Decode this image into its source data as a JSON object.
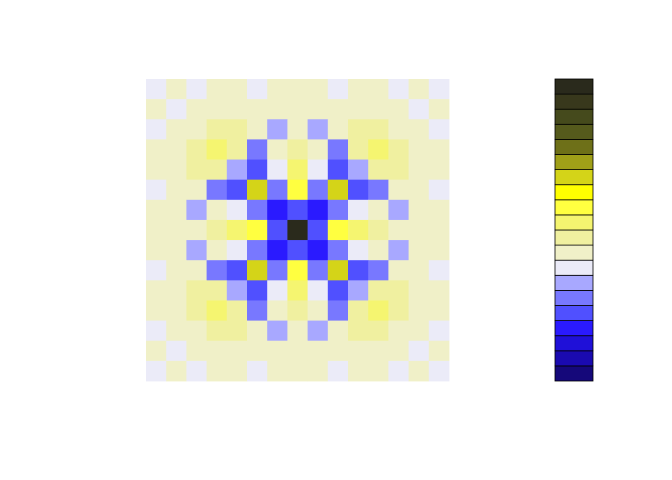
{
  "chart_data": {
    "type": "contour",
    "levels": [
      0,
      1,
      2,
      3,
      4,
      5,
      6,
      7,
      8,
      9,
      10,
      11,
      12,
      13,
      14,
      15,
      16,
      17,
      18,
      19
    ],
    "colors": [
      "#15087a",
      "#1a0ab0",
      "#1f10d8",
      "#2a1aff",
      "#5050ff",
      "#7878ff",
      "#a8a8ff",
      "#ebebf8",
      "#f0f0c8",
      "#f0f0a0",
      "#f5f570",
      "#ffff40",
      "#ffff00",
      "#d4d418",
      "#a0a018",
      "#6e7018",
      "#555a1c",
      "#454a1c",
      "#38381c",
      "#2a2a1c"
    ],
    "z": [
      [
        7,
        8,
        7,
        8,
        8,
        7,
        8,
        8,
        8,
        7,
        8,
        8,
        7,
        8,
        7
      ],
      [
        8,
        7,
        8,
        8,
        8,
        8,
        8,
        8,
        8,
        8,
        8,
        8,
        8,
        7,
        8
      ],
      [
        7,
        8,
        8,
        9,
        9,
        8,
        6,
        8,
        6,
        8,
        9,
        9,
        8,
        8,
        7
      ],
      [
        8,
        8,
        9,
        10,
        9,
        5,
        8,
        9,
        8,
        5,
        9,
        10,
        9,
        8,
        8
      ],
      [
        8,
        8,
        9,
        9,
        6,
        4,
        7,
        10,
        7,
        4,
        6,
        9,
        9,
        8,
        8
      ],
      [
        7,
        8,
        8,
        5,
        4,
        13,
        5,
        11,
        5,
        13,
        4,
        5,
        8,
        8,
        7
      ],
      [
        8,
        8,
        6,
        8,
        7,
        5,
        3,
        4,
        3,
        5,
        7,
        8,
        6,
        8,
        8
      ],
      [
        8,
        8,
        8,
        9,
        10,
        11,
        4,
        19,
        4,
        11,
        10,
        9,
        8,
        8,
        8
      ],
      [
        8,
        8,
        6,
        8,
        7,
        5,
        3,
        4,
        3,
        5,
        7,
        8,
        6,
        8,
        8
      ],
      [
        7,
        8,
        8,
        5,
        4,
        13,
        5,
        11,
        5,
        13,
        4,
        5,
        8,
        8,
        7
      ],
      [
        8,
        8,
        9,
        9,
        6,
        4,
        7,
        10,
        7,
        4,
        6,
        9,
        9,
        8,
        8
      ],
      [
        8,
        8,
        9,
        10,
        9,
        5,
        8,
        9,
        8,
        5,
        9,
        10,
        9,
        8,
        8
      ],
      [
        7,
        8,
        8,
        9,
        9,
        8,
        6,
        8,
        6,
        8,
        9,
        9,
        8,
        8,
        7
      ],
      [
        8,
        7,
        8,
        8,
        8,
        8,
        8,
        8,
        8,
        8,
        8,
        8,
        8,
        7,
        8
      ],
      [
        7,
        8,
        7,
        8,
        8,
        7,
        8,
        8,
        8,
        7,
        8,
        8,
        7,
        8,
        7
      ]
    ]
  }
}
